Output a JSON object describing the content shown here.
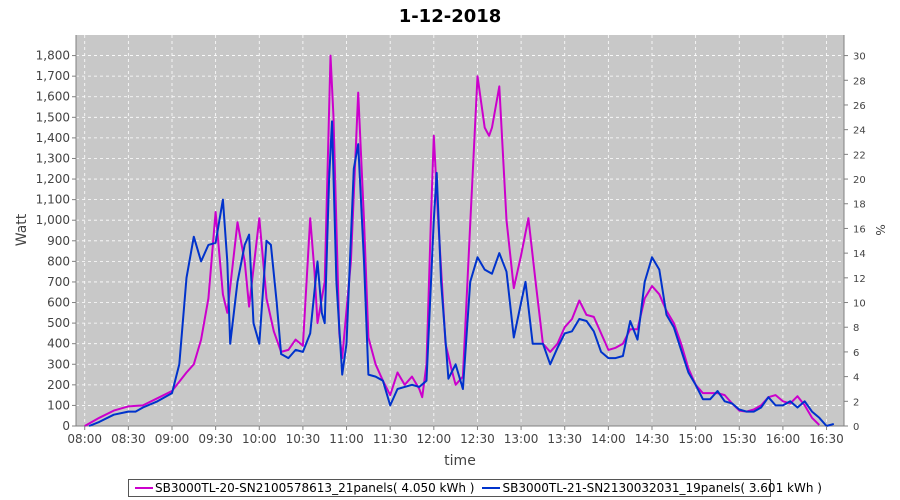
{
  "chart_data": {
    "type": "line",
    "title": "1-12-2018",
    "xlabel": "time",
    "ylabel": "Watt",
    "y2label": "%",
    "ylim": [
      0,
      1900
    ],
    "y2lim": [
      0,
      31.6667
    ],
    "xlim": [
      "07:54",
      "16:42"
    ],
    "x_tick_labels": [
      "08:00",
      "08:30",
      "09:00",
      "09:30",
      "10:00",
      "10:30",
      "11:00",
      "11:30",
      "12:00",
      "12:30",
      "13:00",
      "13:30",
      "14:00",
      "14:30",
      "15:00",
      "15:30",
      "16:00",
      "16:30"
    ],
    "y_tick_labels": [
      "0",
      "100",
      "200",
      "300",
      "400",
      "500",
      "600",
      "700",
      "800",
      "900",
      "1,000",
      "1,100",
      "1,200",
      "1,300",
      "1,400",
      "1,500",
      "1,600",
      "1,700",
      "1,800"
    ],
    "y2_tick_labels": [
      "0",
      "2",
      "4",
      "6",
      "8",
      "10",
      "12",
      "14",
      "16",
      "18",
      "20",
      "22",
      "24",
      "26",
      "28",
      "30"
    ],
    "grid": true,
    "legend_position": "bottom",
    "colors": {
      "plot_bg": "#c8c8c8",
      "grid": "#ffffff",
      "series1": "#cc00cc",
      "series2": "#0033cc"
    },
    "series": [
      {
        "name": "SB3000TL-20-SN2100578613_21panels( 4.050 kWh )",
        "color": "#cc00cc",
        "points": [
          [
            "08:00",
            0
          ],
          [
            "08:10",
            40
          ],
          [
            "08:20",
            75
          ],
          [
            "08:30",
            95
          ],
          [
            "08:40",
            100
          ],
          [
            "08:50",
            135
          ],
          [
            "09:00",
            170
          ],
          [
            "09:10",
            260
          ],
          [
            "09:15",
            300
          ],
          [
            "09:20",
            420
          ],
          [
            "09:25",
            620
          ],
          [
            "09:30",
            1040
          ],
          [
            "09:35",
            640
          ],
          [
            "09:38",
            550
          ],
          [
            "09:45",
            990
          ],
          [
            "09:50",
            800
          ],
          [
            "09:53",
            580
          ],
          [
            "10:00",
            1010
          ],
          [
            "10:05",
            620
          ],
          [
            "10:10",
            460
          ],
          [
            "10:15",
            360
          ],
          [
            "10:20",
            370
          ],
          [
            "10:25",
            420
          ],
          [
            "10:30",
            390
          ],
          [
            "10:35",
            1010
          ],
          [
            "10:38",
            750
          ],
          [
            "10:40",
            500
          ],
          [
            "10:45",
            700
          ],
          [
            "10:49",
            1800
          ],
          [
            "10:51",
            1500
          ],
          [
            "10:55",
            450
          ],
          [
            "10:57",
            330
          ],
          [
            "11:03",
            800
          ],
          [
            "11:08",
            1620
          ],
          [
            "11:12",
            1000
          ],
          [
            "11:15",
            430
          ],
          [
            "11:20",
            300
          ],
          [
            "11:25",
            220
          ],
          [
            "11:30",
            150
          ],
          [
            "11:35",
            260
          ],
          [
            "11:40",
            200
          ],
          [
            "11:45",
            240
          ],
          [
            "11:50",
            180
          ],
          [
            "11:52",
            140
          ],
          [
            "11:55",
            300
          ],
          [
            "11:58",
            1000
          ],
          [
            "12:00",
            1410
          ],
          [
            "12:03",
            1000
          ],
          [
            "12:08",
            400
          ],
          [
            "12:12",
            280
          ],
          [
            "12:15",
            200
          ],
          [
            "12:20",
            240
          ],
          [
            "12:25",
            980
          ],
          [
            "12:30",
            1700
          ],
          [
            "12:35",
            1450
          ],
          [
            "12:38",
            1410
          ],
          [
            "12:40",
            1450
          ],
          [
            "12:45",
            1650
          ],
          [
            "12:50",
            1000
          ],
          [
            "12:55",
            670
          ],
          [
            "13:00",
            830
          ],
          [
            "13:05",
            1010
          ],
          [
            "13:10",
            700
          ],
          [
            "13:15",
            400
          ],
          [
            "13:20",
            360
          ],
          [
            "13:25",
            400
          ],
          [
            "13:30",
            480
          ],
          [
            "13:35",
            520
          ],
          [
            "13:40",
            610
          ],
          [
            "13:45",
            540
          ],
          [
            "13:50",
            530
          ],
          [
            "13:55",
            450
          ],
          [
            "14:00",
            370
          ],
          [
            "14:05",
            380
          ],
          [
            "14:10",
            400
          ],
          [
            "14:15",
            470
          ],
          [
            "14:20",
            470
          ],
          [
            "14:25",
            620
          ],
          [
            "14:30",
            680
          ],
          [
            "14:35",
            640
          ],
          [
            "14:40",
            560
          ],
          [
            "14:45",
            500
          ],
          [
            "14:50",
            400
          ],
          [
            "14:55",
            280
          ],
          [
            "15:00",
            200
          ],
          [
            "15:05",
            160
          ],
          [
            "15:10",
            160
          ],
          [
            "15:15",
            160
          ],
          [
            "15:20",
            150
          ],
          [
            "15:25",
            110
          ],
          [
            "15:30",
            75
          ],
          [
            "15:35",
            70
          ],
          [
            "15:40",
            80
          ],
          [
            "15:45",
            100
          ],
          [
            "15:50",
            140
          ],
          [
            "15:55",
            150
          ],
          [
            "16:00",
            120
          ],
          [
            "16:05",
            110
          ],
          [
            "16:10",
            145
          ],
          [
            "16:15",
            100
          ],
          [
            "16:20",
            40
          ],
          [
            "16:25",
            5
          ]
        ]
      },
      {
        "name": "SB3000TL-21-SN2130032031_19panels( 3.601 kWh )",
        "color": "#0033cc",
        "points": [
          [
            "08:03",
            0
          ],
          [
            "08:10",
            20
          ],
          [
            "08:20",
            55
          ],
          [
            "08:30",
            70
          ],
          [
            "08:35",
            70
          ],
          [
            "08:40",
            90
          ],
          [
            "08:50",
            120
          ],
          [
            "09:00",
            160
          ],
          [
            "09:05",
            300
          ],
          [
            "09:10",
            720
          ],
          [
            "09:15",
            920
          ],
          [
            "09:20",
            800
          ],
          [
            "09:25",
            880
          ],
          [
            "09:30",
            890
          ],
          [
            "09:35",
            1100
          ],
          [
            "09:38",
            800
          ],
          [
            "09:40",
            400
          ],
          [
            "09:45",
            700
          ],
          [
            "09:50",
            880
          ],
          [
            "09:53",
            930
          ],
          [
            "09:56",
            500
          ],
          [
            "10:00",
            400
          ],
          [
            "10:05",
            900
          ],
          [
            "10:08",
            880
          ],
          [
            "10:12",
            600
          ],
          [
            "10:15",
            350
          ],
          [
            "10:20",
            330
          ],
          [
            "10:25",
            370
          ],
          [
            "10:30",
            360
          ],
          [
            "10:35",
            450
          ],
          [
            "10:40",
            800
          ],
          [
            "10:43",
            550
          ],
          [
            "10:45",
            500
          ],
          [
            "10:48",
            1200
          ],
          [
            "10:50",
            1480
          ],
          [
            "10:53",
            700
          ],
          [
            "10:57",
            250
          ],
          [
            "11:00",
            400
          ],
          [
            "11:05",
            1250
          ],
          [
            "11:08",
            1370
          ],
          [
            "11:12",
            800
          ],
          [
            "11:15",
            250
          ],
          [
            "11:20",
            240
          ],
          [
            "11:25",
            220
          ],
          [
            "11:30",
            100
          ],
          [
            "11:35",
            180
          ],
          [
            "11:40",
            190
          ],
          [
            "11:45",
            200
          ],
          [
            "11:50",
            190
          ],
          [
            "11:55",
            220
          ],
          [
            "12:00",
            1000
          ],
          [
            "12:02",
            1230
          ],
          [
            "12:05",
            700
          ],
          [
            "12:10",
            230
          ],
          [
            "12:15",
            300
          ],
          [
            "12:20",
            180
          ],
          [
            "12:25",
            700
          ],
          [
            "12:30",
            820
          ],
          [
            "12:35",
            760
          ],
          [
            "12:40",
            740
          ],
          [
            "12:45",
            840
          ],
          [
            "12:50",
            750
          ],
          [
            "12:55",
            430
          ],
          [
            "13:00",
            600
          ],
          [
            "13:03",
            700
          ],
          [
            "13:08",
            400
          ],
          [
            "13:15",
            400
          ],
          [
            "13:20",
            300
          ],
          [
            "13:25",
            380
          ],
          [
            "13:30",
            450
          ],
          [
            "13:35",
            460
          ],
          [
            "13:40",
            520
          ],
          [
            "13:45",
            510
          ],
          [
            "13:50",
            460
          ],
          [
            "13:55",
            360
          ],
          [
            "14:00",
            330
          ],
          [
            "14:05",
            330
          ],
          [
            "14:10",
            340
          ],
          [
            "14:15",
            510
          ],
          [
            "14:20",
            420
          ],
          [
            "14:25",
            700
          ],
          [
            "14:30",
            820
          ],
          [
            "14:35",
            760
          ],
          [
            "14:40",
            540
          ],
          [
            "14:45",
            480
          ],
          [
            "14:50",
            370
          ],
          [
            "14:55",
            260
          ],
          [
            "15:00",
            200
          ],
          [
            "15:05",
            130
          ],
          [
            "15:10",
            130
          ],
          [
            "15:15",
            170
          ],
          [
            "15:20",
            120
          ],
          [
            "15:25",
            110
          ],
          [
            "15:30",
            80
          ],
          [
            "15:35",
            70
          ],
          [
            "15:40",
            70
          ],
          [
            "15:45",
            90
          ],
          [
            "15:50",
            140
          ],
          [
            "15:55",
            100
          ],
          [
            "16:00",
            100
          ],
          [
            "16:05",
            120
          ],
          [
            "16:10",
            90
          ],
          [
            "16:15",
            120
          ],
          [
            "16:20",
            70
          ],
          [
            "16:25",
            40
          ],
          [
            "16:30",
            0
          ],
          [
            "16:35",
            10
          ]
        ]
      }
    ]
  }
}
